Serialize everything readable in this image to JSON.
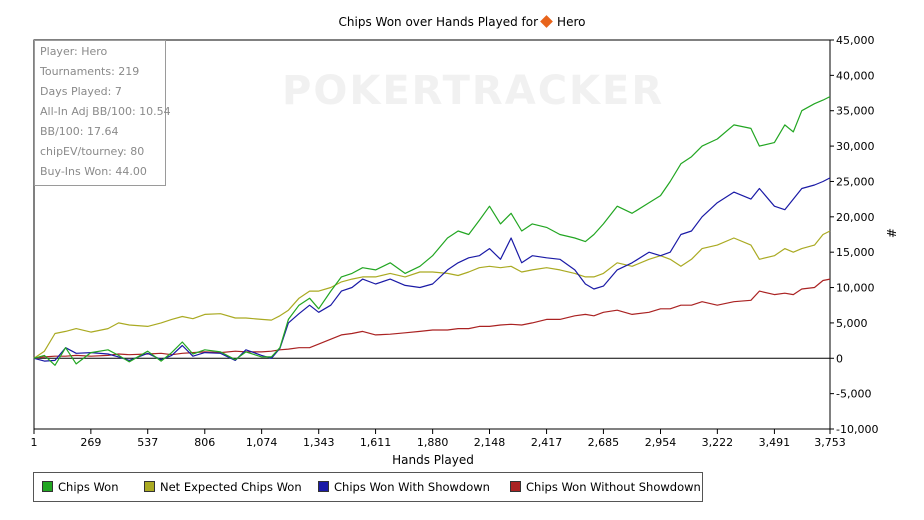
{
  "title": {
    "prefix": "Chips Won over Hands Played for",
    "player": "Hero"
  },
  "watermark": "POKERTRACKER",
  "stats_box": {
    "player": "Player: Hero",
    "tournaments": "Tournaments: 219",
    "days_played": "Days Played: 7",
    "allin_adj": "All-In Adj BB/100: 10.54",
    "bb100": "BB/100: 17.64",
    "chipev": "chipEV/tourney: 80",
    "buyins": "Buy-Ins Won: 44.00"
  },
  "colors": {
    "chips_won": "#22a622",
    "net_expected": "#aaaa22",
    "showdown": "#1a1aa6",
    "without_showdown": "#aa2222",
    "axis": "#000000",
    "grid": "#cccccc"
  },
  "chart_data": {
    "type": "line",
    "xlabel": "Hands Played",
    "ylabel": "#",
    "xlim": [
      1,
      3753
    ],
    "ylim": [
      -10000,
      45000
    ],
    "x_ticks": [
      "1",
      "269",
      "537",
      "806",
      "1,074",
      "1,343",
      "1,611",
      "1,880",
      "2,148",
      "2,417",
      "2,685",
      "2,954",
      "3,222",
      "3,491",
      "3,753"
    ],
    "y_ticks": [
      "45,000",
      "40,000",
      "35,000",
      "30,000",
      "25,000",
      "20,000",
      "15,000",
      "10,000",
      "5,000",
      "0",
      "-5,000",
      "-10,000"
    ],
    "y_tick_values": [
      45000,
      40000,
      35000,
      30000,
      25000,
      20000,
      15000,
      10000,
      5000,
      0,
      -5000,
      -10000
    ],
    "x_tick_values": [
      1,
      269,
      537,
      806,
      1074,
      1343,
      1611,
      1880,
      2148,
      2417,
      2685,
      2954,
      3222,
      3491,
      3753
    ],
    "legend_position": "bottom",
    "x": [
      1,
      50,
      100,
      150,
      200,
      269,
      350,
      400,
      450,
      537,
      600,
      650,
      700,
      750,
      806,
      880,
      950,
      1000,
      1074,
      1120,
      1160,
      1200,
      1250,
      1300,
      1343,
      1400,
      1450,
      1500,
      1550,
      1611,
      1680,
      1750,
      1820,
      1880,
      1950,
      2000,
      2050,
      2100,
      2148,
      2200,
      2250,
      2300,
      2350,
      2417,
      2480,
      2550,
      2600,
      2640,
      2685,
      2750,
      2820,
      2900,
      2954,
      3000,
      3050,
      3100,
      3150,
      3222,
      3300,
      3380,
      3420,
      3491,
      3540,
      3580,
      3620,
      3680,
      3720,
      3753
    ],
    "series": [
      {
        "name": "Chips Won",
        "values": [
          0,
          400,
          -1000,
          1500,
          -800,
          800,
          1200,
          400,
          -500,
          1000,
          -400,
          800,
          2300,
          600,
          1200,
          900,
          -200,
          900,
          200,
          200,
          1500,
          5500,
          7500,
          8500,
          7000,
          9500,
          11500,
          12000,
          12800,
          12500,
          13500,
          12000,
          13000,
          14500,
          17000,
          18000,
          17500,
          19500,
          21500,
          19000,
          20500,
          18000,
          19000,
          18500,
          17500,
          17000,
          16500,
          17500,
          19000,
          21500,
          20500,
          22000,
          23000,
          25000,
          27500,
          28500,
          30000,
          31000,
          33000,
          32500,
          30000,
          30500,
          33000,
          32000,
          35000,
          36000,
          36500,
          37000
        ]
      },
      {
        "name": "Net Expected Chips Won",
        "values": [
          0,
          1000,
          3500,
          3800,
          4200,
          3700,
          4200,
          5000,
          4700,
          4500,
          5000,
          5500,
          5900,
          5600,
          6200,
          6300,
          5700,
          5700,
          5500,
          5400,
          6000,
          6800,
          8500,
          9500,
          9500,
          10000,
          10800,
          11200,
          11500,
          11500,
          12000,
          11500,
          12200,
          12200,
          12000,
          11700,
          12200,
          12800,
          13000,
          12800,
          13000,
          12200,
          12500,
          12800,
          12500,
          12000,
          11500,
          11500,
          12000,
          13500,
          13000,
          14000,
          14500,
          14000,
          13000,
          14000,
          15500,
          16000,
          17000,
          16000,
          14000,
          14500,
          15500,
          15000,
          15500,
          16000,
          17500,
          18000
        ]
      },
      {
        "name": "Chips Won With Showdown",
        "values": [
          0,
          -400,
          -300,
          1500,
          700,
          800,
          600,
          200,
          -300,
          700,
          -200,
          400,
          1800,
          300,
          800,
          700,
          -300,
          1200,
          400,
          0,
          1400,
          5000,
          6300,
          7500,
          6500,
          7500,
          9500,
          10000,
          11200,
          10500,
          11200,
          10300,
          10000,
          10500,
          12500,
          13500,
          14200,
          14500,
          15500,
          14000,
          17000,
          13500,
          14500,
          14200,
          14000,
          12500,
          10500,
          9800,
          10200,
          12500,
          13500,
          15000,
          14500,
          15000,
          17500,
          18000,
          20000,
          22000,
          23500,
          22500,
          24000,
          21500,
          21000,
          22500,
          24000,
          24500,
          25000,
          25500
        ]
      },
      {
        "name": "Chips Won Without Showdown",
        "values": [
          0,
          200,
          300,
          300,
          400,
          300,
          400,
          600,
          500,
          600,
          700,
          500,
          700,
          800,
          900,
          800,
          1000,
          900,
          900,
          1000,
          1200,
          1300,
          1500,
          1500,
          2000,
          2700,
          3300,
          3500,
          3800,
          3300,
          3400,
          3600,
          3800,
          4000,
          4000,
          4200,
          4200,
          4500,
          4500,
          4700,
          4800,
          4700,
          5000,
          5500,
          5500,
          6000,
          6200,
          6000,
          6500,
          6800,
          6200,
          6500,
          7000,
          7000,
          7500,
          7500,
          8000,
          7500,
          8000,
          8200,
          9500,
          9000,
          9200,
          9000,
          9800,
          10000,
          11000,
          11200
        ]
      }
    ]
  },
  "legend": [
    {
      "label": "Chips Won"
    },
    {
      "label": "Net Expected Chips Won"
    },
    {
      "label": "Chips Won With Showdown"
    },
    {
      "label": "Chips Won Without Showdown"
    }
  ]
}
